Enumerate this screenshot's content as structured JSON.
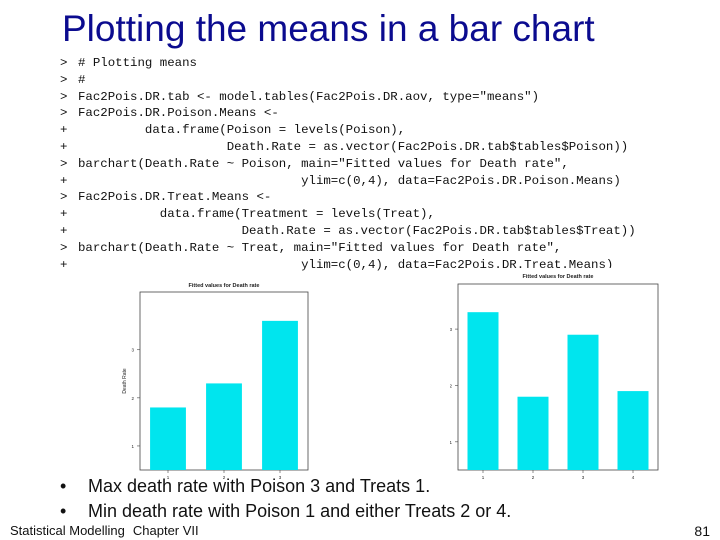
{
  "slide": {
    "title": "Plotting the means in a bar chart",
    "code_lines": [
      {
        "prompt": ">",
        "text": "# Plotting means"
      },
      {
        "prompt": ">",
        "text": "#"
      },
      {
        "prompt": ">",
        "text": "Fac2Pois.DR.tab <- model.tables(Fac2Pois.DR.aov, type=\"means\")"
      },
      {
        "prompt": ">",
        "text": "Fac2Pois.DR.Poison.Means <-"
      },
      {
        "prompt": "+",
        "text": "         data.frame(Poison = levels(Poison),"
      },
      {
        "prompt": "+",
        "text": "                    Death.Rate = as.vector(Fac2Pois.DR.tab$tables$Poison))"
      },
      {
        "prompt": ">",
        "text": "barchart(Death.Rate ~ Poison, main=\"Fitted values for Death rate\","
      },
      {
        "prompt": "+",
        "text": "                              ylim=c(0,4), data=Fac2Pois.DR.Poison.Means)"
      },
      {
        "prompt": ">",
        "text": "Fac2Pois.DR.Treat.Means <-"
      },
      {
        "prompt": "+",
        "text": "           data.frame(Treatment = levels(Treat),"
      },
      {
        "prompt": "+",
        "text": "                      Death.Rate = as.vector(Fac2Pois.DR.tab$tables$Treat))"
      },
      {
        "prompt": ">",
        "text": "barchart(Death.Rate ~ Treat, main=\"Fitted values for Death rate\","
      },
      {
        "prompt": "+",
        "text": "                              ylim=c(0,4), data=Fac2Pois.DR.Treat.Means)"
      }
    ],
    "bullets": [
      "Max death rate with Poison 3 and Treats 1.",
      "Min death rate with Poison 1 and either Treats 2 or 4."
    ],
    "footer_left": "Statistical Modelling",
    "footer_chapter": "Chapter VII",
    "page_number": "81"
  },
  "chart_data": [
    {
      "type": "bar",
      "title": "Fitted values for Death rate",
      "ylabel": "Death Rate",
      "categories": [
        "1",
        "2",
        "3"
      ],
      "values": [
        1.8,
        2.3,
        3.6
      ],
      "yticks": [
        "1",
        "2",
        "3"
      ],
      "ylim": [
        0.5,
        4.2
      ],
      "bar_color": "#00e5ee"
    },
    {
      "type": "bar",
      "title": "Fitted values for Death rate",
      "ylabel": "",
      "categories": [
        "1",
        "2",
        "3",
        "4"
      ],
      "values": [
        3.3,
        1.8,
        2.9,
        1.9
      ],
      "yticks": [
        "1",
        "2",
        "3"
      ],
      "ylim": [
        0.5,
        3.8
      ],
      "bar_color": "#00e5ee"
    }
  ]
}
